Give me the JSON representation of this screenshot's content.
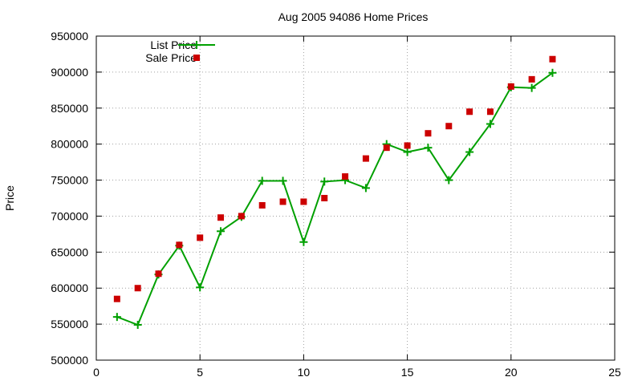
{
  "chart_data": {
    "type": "line",
    "title": "Aug 2005 94086 Home Prices",
    "xlabel": "",
    "ylabel": "Price",
    "xlim": [
      0,
      25
    ],
    "ylim": [
      500000,
      950000
    ],
    "x_ticks": [
      0,
      5,
      10,
      15,
      20,
      25
    ],
    "y_ticks": [
      500000,
      550000,
      600000,
      650000,
      700000,
      750000,
      800000,
      850000,
      900000,
      950000
    ],
    "grid": true,
    "legend_position": "top-left",
    "series": [
      {
        "name": "List Price",
        "style": "line+plus",
        "color": "#00a000",
        "points": [
          [
            1,
            560000
          ],
          [
            2,
            549000
          ],
          [
            3,
            619000
          ],
          [
            4,
            659000
          ],
          [
            5,
            601000
          ],
          [
            6,
            679000
          ],
          [
            7,
            699000
          ],
          [
            8,
            749000
          ],
          [
            9,
            749000
          ],
          [
            10,
            664000
          ],
          [
            11,
            748000
          ],
          [
            12,
            750000
          ],
          [
            13,
            739000
          ],
          [
            14,
            800000
          ],
          [
            15,
            789000
          ],
          [
            16,
            795000
          ],
          [
            17,
            750000
          ],
          [
            18,
            789000
          ],
          [
            19,
            828000
          ],
          [
            20,
            879000
          ],
          [
            21,
            878000
          ],
          [
            22,
            899000
          ]
        ]
      },
      {
        "name": "Sale Price",
        "style": "square",
        "color": "#cc0000",
        "points": [
          [
            1,
            585000
          ],
          [
            2,
            600000
          ],
          [
            3,
            620000
          ],
          [
            4,
            660000
          ],
          [
            5,
            670000
          ],
          [
            6,
            698000
          ],
          [
            7,
            700000
          ],
          [
            8,
            715000
          ],
          [
            9,
            720000
          ],
          [
            10,
            720000
          ],
          [
            11,
            725000
          ],
          [
            12,
            755000
          ],
          [
            13,
            780000
          ],
          [
            14,
            795000
          ],
          [
            15,
            798000
          ],
          [
            16,
            815000
          ],
          [
            17,
            825000
          ],
          [
            18,
            845000
          ],
          [
            19,
            845000
          ],
          [
            20,
            880000
          ],
          [
            21,
            890000
          ],
          [
            22,
            918000
          ]
        ]
      }
    ]
  }
}
